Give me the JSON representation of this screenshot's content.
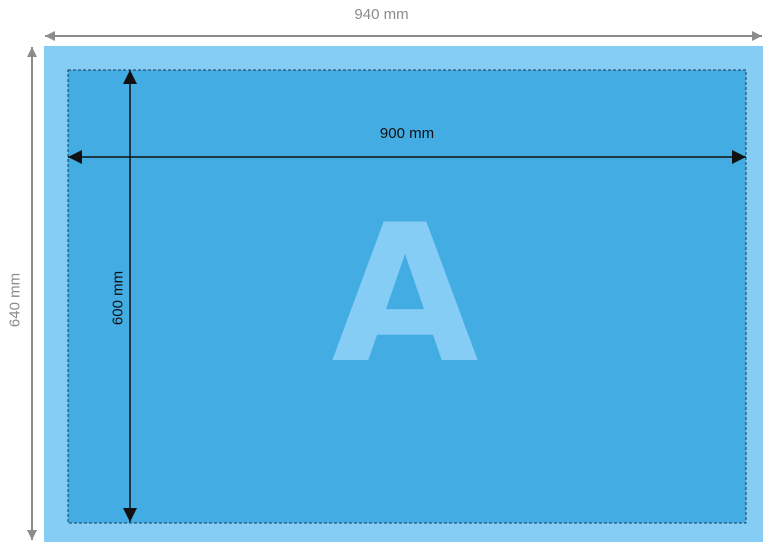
{
  "dimensions": {
    "outer_width": "940 mm",
    "outer_height": "640 mm",
    "inner_width": "900 mm",
    "inner_height": "600 mm"
  },
  "format_letter": "A",
  "colors": {
    "bleed_area": "#86cdf5",
    "trim_area": "#42ace3",
    "letter": "#86cdf5",
    "outer_dimension": "#8c8c8c",
    "inner_dimension": "#111111"
  }
}
